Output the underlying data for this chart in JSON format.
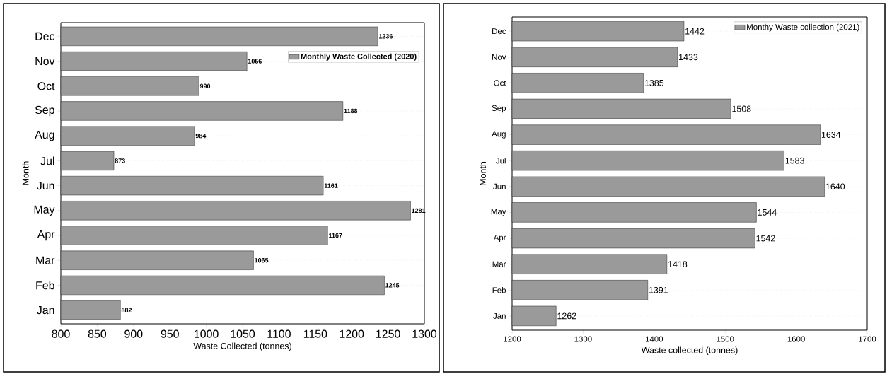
{
  "chart_data": [
    {
      "type": "bar",
      "orientation": "horizontal",
      "xlabel": "Waste Collected (tonnes)",
      "ylabel": "Month",
      "categories": [
        "Dec",
        "Nov",
        "Oct",
        "Sep",
        "Aug",
        "Jul",
        "Jun",
        "May",
        "Apr",
        "Mar",
        "Feb",
        "Jan"
      ],
      "series": [
        {
          "name": "Monthly Waste Collected (2020)",
          "color": "#9a9a9a",
          "values": [
            1236,
            1056,
            990,
            1188,
            984,
            873,
            1161,
            1281,
            1167,
            1065,
            1245,
            882
          ]
        }
      ],
      "xlim": [
        800,
        1300
      ],
      "xticks": [
        800,
        850,
        900,
        950,
        1000,
        1050,
        1100,
        1150,
        1200,
        1250,
        1300
      ],
      "data_labels": true,
      "legend": "top right",
      "grid": "y"
    },
    {
      "type": "bar",
      "orientation": "horizontal",
      "xlabel": "Waste collected (tonnes)",
      "ylabel": "Month",
      "categories": [
        "Dec",
        "Nov",
        "Oct",
        "Sep",
        "Aug",
        "Jul",
        "Jun",
        "May",
        "Apr",
        "Mar",
        "Feb",
        "Jan"
      ],
      "series": [
        {
          "name": "Monthy Waste collection (2021)",
          "color": "#9a9a9a",
          "values": [
            1442,
            1433,
            1385,
            1508,
            1634,
            1583,
            1640,
            1544,
            1542,
            1418,
            1391,
            1262
          ]
        }
      ],
      "xlim": [
        1200,
        1700
      ],
      "xticks": [
        1200,
        1300,
        1400,
        1500,
        1600,
        1700
      ],
      "data_labels": true,
      "legend": "top right",
      "grid": "y"
    }
  ]
}
